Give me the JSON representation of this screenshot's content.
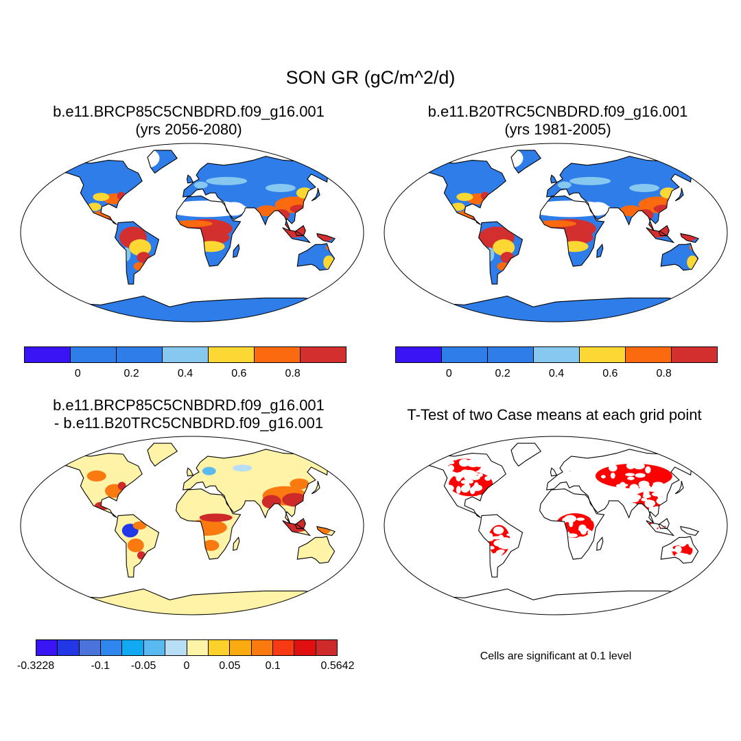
{
  "title": "SON GR (gC/m^2/d)",
  "panels": [
    {
      "title_line1": "b.e11.BRCP85C5CNBDRD.f09_g16.001",
      "title_line2": "(yrs 2056-2080)"
    },
    {
      "title_line1": "b.e11.B20TRC5CNBDRD.f09_g16.001",
      "title_line2": "(yrs 1981-2005)"
    },
    {
      "title_line1": "b.e11.BRCP85C5CNBDRD.f09_g16.001",
      "title_line2": "- b.e11.B20TRC5CNBDRD.f09_g16.001"
    },
    {
      "title_line1": "T-Test of two Case means at each grid point"
    }
  ],
  "colorbar_main": {
    "colors": [
      "#3a14f5",
      "#2f7de8",
      "#2f7de8",
      "#86c8f0",
      "#fdd835",
      "#fb6a0f",
      "#d32f2f"
    ],
    "labels": [
      "0",
      "0.2",
      "0.4",
      "0.6",
      "0.8"
    ]
  },
  "colorbar_diff": {
    "colors": [
      "#3a14f5",
      "#2238e6",
      "#4a73dc",
      "#2f86ee",
      "#11aaf2",
      "#5ab9ee",
      "#b7def5",
      "#fff3a8",
      "#fcd12b",
      "#fbaa0f",
      "#fb7a10",
      "#f83a14",
      "#e01010",
      "#cf2a2a"
    ],
    "labels": [
      "-0.3228",
      "-0.1",
      "-0.05",
      "0",
      "0.05",
      "0.1",
      "0.5642"
    ]
  },
  "significance_note": "Cells are significant at 0.1 level",
  "map_colors": {
    "gr_low": "#2f7de8",
    "gr_mid": "#86c8f0",
    "gr_yellow": "#fdd835",
    "gr_orange": "#fb6a0f",
    "gr_high": "#d32f2f",
    "diff_base": "#fff3a8",
    "diff_pos": "#fb7a10",
    "diff_high": "#cf2a2a",
    "diff_neg": "#2238e6",
    "sig": "#ff0000"
  }
}
